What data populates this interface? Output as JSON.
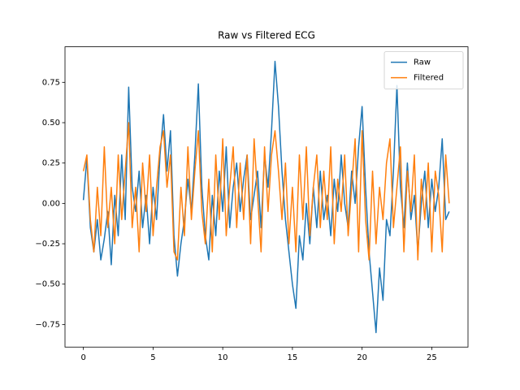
{
  "chart_data": {
    "type": "line",
    "title": "Raw vs Filtered ECG",
    "x": [
      0,
      0.25,
      0.5,
      0.75,
      1,
      1.25,
      1.5,
      1.75,
      2,
      2.25,
      2.5,
      2.75,
      3,
      3.25,
      3.5,
      3.75,
      4,
      4.25,
      4.5,
      4.75,
      5,
      5.25,
      5.5,
      5.75,
      6,
      6.25,
      6.5,
      6.75,
      7,
      7.25,
      7.5,
      7.75,
      8,
      8.25,
      8.5,
      8.75,
      9,
      9.25,
      9.5,
      9.75,
      10,
      10.25,
      10.5,
      10.75,
      11,
      11.25,
      11.5,
      11.75,
      12,
      12.25,
      12.5,
      12.75,
      13,
      13.25,
      13.5,
      13.75,
      14,
      14.25,
      14.5,
      14.75,
      15,
      15.25,
      15.5,
      15.75,
      16,
      16.25,
      16.5,
      16.75,
      17,
      17.25,
      17.5,
      17.75,
      18,
      18.25,
      18.5,
      18.75,
      19,
      19.25,
      19.5,
      19.75,
      20,
      20.25,
      20.5,
      20.75,
      21,
      21.25,
      21.5,
      21.75,
      22,
      22.25,
      22.5,
      22.75,
      23,
      23.25,
      23.5,
      23.75,
      24,
      24.25,
      24.5,
      24.75,
      25,
      25.25,
      25.5,
      25.75,
      26,
      26.25
    ],
    "series": [
      {
        "name": "Raw",
        "color": "#1f77b4",
        "values": [
          0.02,
          0.28,
          -0.15,
          -0.3,
          -0.1,
          -0.35,
          -0.22,
          -0.05,
          -0.38,
          0.05,
          -0.2,
          0.3,
          -0.1,
          0.72,
          0.1,
          -0.05,
          0.2,
          -0.15,
          0.05,
          -0.25,
          0.1,
          -0.1,
          0.3,
          0.55,
          0.2,
          0.45,
          -0.2,
          -0.45,
          -0.25,
          -0.1,
          0.15,
          -0.05,
          0.3,
          0.74,
          0.1,
          -0.2,
          -0.35,
          0.05,
          -0.2,
          0.2,
          -0.05,
          0.35,
          -0.15,
          0.1,
          0.25,
          -0.05,
          0.15,
          0.3,
          -0.1,
          0.05,
          0.2,
          -0.15,
          0.3,
          0.1,
          0.45,
          0.88,
          0.6,
          0.2,
          -0.1,
          -0.3,
          -0.5,
          -0.65,
          -0.2,
          -0.35,
          0.0,
          -0.25,
          0.1,
          -0.15,
          0.2,
          -0.1,
          0.05,
          -0.2,
          0.15,
          -0.05,
          0.3,
          0.0,
          -0.15,
          0.2,
          0.0,
          0.35,
          0.6,
          0.1,
          -0.3,
          -0.55,
          -0.8,
          -0.4,
          -0.6,
          -0.1,
          -0.2,
          0.2,
          0.73,
          0.1,
          -0.15,
          0.25,
          -0.1,
          0.05,
          -0.3,
          0.0,
          0.2,
          -0.15,
          0.15,
          -0.05,
          0.1,
          0.4,
          -0.1,
          -0.05
        ]
      },
      {
        "name": "Filtered",
        "color": "#ff7f0e",
        "values": [
          0.2,
          0.3,
          -0.1,
          -0.3,
          0.1,
          -0.2,
          0.35,
          -0.15,
          0.1,
          -0.25,
          0.3,
          -0.1,
          0.2,
          0.5,
          -0.15,
          0.1,
          -0.3,
          0.25,
          -0.05,
          0.3,
          -0.2,
          0.1,
          0.35,
          0.45,
          0.1,
          0.3,
          -0.3,
          -0.35,
          0.1,
          -0.2,
          0.35,
          -0.1,
          0.2,
          0.45,
          -0.05,
          -0.25,
          0.15,
          -0.3,
          0.3,
          -0.1,
          0.4,
          -0.2,
          0.1,
          0.35,
          -0.15,
          0.25,
          -0.1,
          0.3,
          -0.25,
          0.4,
          0.05,
          -0.3,
          0.35,
          -0.05,
          0.3,
          0.45,
          0.2,
          -0.1,
          0.25,
          -0.25,
          0.1,
          -0.3,
          0.3,
          -0.1,
          0.35,
          -0.2,
          0.1,
          0.3,
          -0.15,
          0.2,
          -0.1,
          0.35,
          -0.25,
          0.15,
          -0.05,
          0.3,
          -0.2,
          0.1,
          0.4,
          -0.3,
          0.45,
          -0.1,
          -0.35,
          0.2,
          -0.25,
          0.1,
          -0.1,
          0.25,
          0.4,
          -0.15,
          0.1,
          0.35,
          -0.3,
          0.2,
          -0.05,
          0.3,
          -0.35,
          0.15,
          -0.1,
          0.25,
          -0.3,
          0.2,
          0.05,
          -0.3,
          0.3,
          0.0
        ]
      }
    ],
    "xlim": [
      -1.32,
      27.6
    ],
    "xticks": [
      0,
      5,
      10,
      15,
      20,
      25
    ],
    "ylim": [
      -0.89,
      0.97
    ],
    "yticks": [
      {
        "value": -0.75,
        "label": "−0.75"
      },
      {
        "value": -0.5,
        "label": "−0.50"
      },
      {
        "value": -0.25,
        "label": "−0.25"
      },
      {
        "value": 0,
        "label": "0.00"
      },
      0.25,
      {
        "value": 0.5,
        "label": "0.50"
      },
      0.75
    ],
    "legend": "upper right"
  }
}
